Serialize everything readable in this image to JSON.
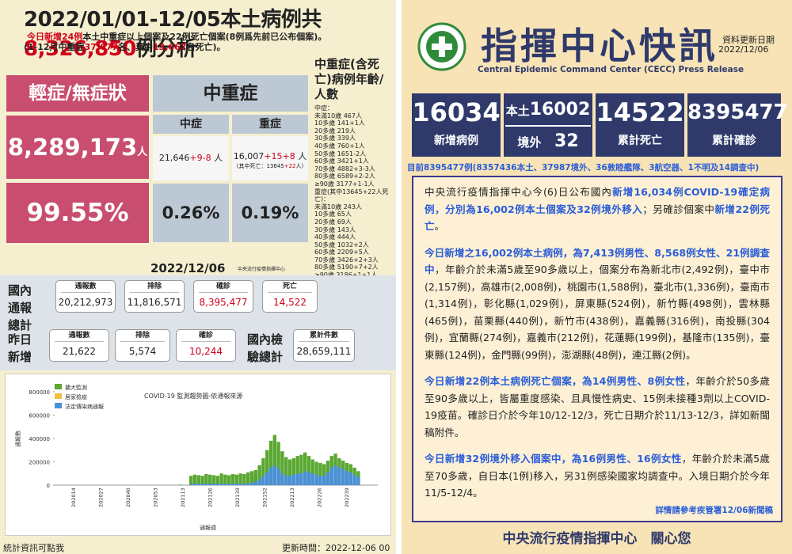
{
  "left": {
    "title_prefix": "2022/01/01-12/05本土病例共",
    "title_number": "8,326,850",
    "title_suffix": "例分析",
    "sub_line1_red": "今日新增24例",
    "sub_line1_rest": "本土中重症以上個案及22例死亡個案(8例爲先前已公布個案)。",
    "sub_line2_a": "(1-12月中重症",
    "sub_line2_b": "37,677",
    "sub_line2_c": "名、其中",
    "sub_line2_d": "13,667",
    "sub_line2_e": "名死亡)。",
    "mild_header": "輕症/無症狀",
    "mild_count": "8,289,173",
    "mild_unit": "人",
    "mild_pct": "99.55%",
    "severe_header": "中重症",
    "moderate_label": "中症",
    "critical_label": "重症",
    "moderate_base": "21,646",
    "moderate_plus": "+9",
    "moderate_minus": "-8",
    "moderate_unit": "人",
    "critical_base": "16,007",
    "critical_plus": "+15",
    "critical_minus": "+8",
    "critical_unit": "人",
    "critical_note_a": "(其中死亡：13645",
    "critical_note_b": "+22",
    "critical_note_c": "人)",
    "moderate_pct": "0.26%",
    "critical_pct": "0.19%",
    "age_header": "中重症(含死亡)病例年齡/人數",
    "age_mod_title": "中症：",
    "age_mod": [
      "未滿10歲 467人",
      "10多歲 141+1人",
      "20多歲 219人",
      "30多歲 339人",
      "40多歲 760+1人",
      "50多歲 1651-2人",
      "60多歲 3421+1人",
      "70多歲 4882+3-3人",
      "80多歲 6589+2-2人",
      "≥90歲 3177+1-1人"
    ],
    "age_sev_title": "重症(其中13645+22人死亡)：",
    "age_sev": [
      "未滿10歲 243人",
      "10多歲 65人",
      "20多歲 69人",
      "30多歲 143人",
      "40多歲 444人",
      "50多歲 1032+2人",
      "60多歲 2209+5人",
      "70多歲 3426+2+3人",
      "80多歲 5190+7+2人",
      "≥90歲 3186+1+1人"
    ],
    "date": "2022/12/06",
    "center_small": "中央流行疫情指揮中心",
    "stats": {
      "dom_total_label": "國內通報總計",
      "report_t": "通報數",
      "report_v": "20,212,973",
      "excl_t": "排除",
      "excl_v": "11,816,571",
      "conf_t": "確診",
      "conf_v": "8,395,477",
      "death_t": "死亡",
      "death_v": "14,522",
      "yest_label": "昨日新增",
      "y_report_t": "通報數",
      "y_report_v": "21,622",
      "y_excl_t": "排除",
      "y_excl_v": "5,574",
      "y_conf_t": "確診",
      "y_conf_v": "10,244",
      "test_label": "國內檢驗總計",
      "test_t": "累計件數",
      "test_v": "28,659,111"
    },
    "footer_left": "統計資訊可點我",
    "footer_right": "更新時間：2022-12-06 00"
  },
  "chart_data": {
    "type": "bar",
    "title": "COVID-19 監測趨勢圖-依通報來源",
    "ylabel": "通報數",
    "xlabel": "通報週",
    "legend": [
      "擴大監測",
      "居家檢疫",
      "法定傳染病通報"
    ],
    "colors": [
      "#5aa832",
      "#f0c040",
      "#4a90d9"
    ],
    "yticks": [
      "800000",
      "600000",
      "400000",
      "200000",
      "0"
    ],
    "xticks": [
      "202014",
      "202027",
      "202040",
      "202053",
      "202113",
      "202126",
      "202139",
      "202152",
      "202213",
      "202226",
      "202239"
    ],
    "ylim": [
      0,
      800000
    ],
    "green": [
      0,
      0,
      0,
      0,
      0,
      0,
      0,
      0,
      0,
      0,
      0,
      0,
      0,
      0,
      0,
      0,
      0,
      0,
      0,
      0,
      0,
      0,
      0,
      0,
      0,
      0,
      0,
      0,
      0,
      0,
      0,
      0,
      0,
      0,
      0,
      0,
      0,
      0,
      0,
      0,
      0,
      0,
      0,
      0,
      0,
      0,
      0,
      0,
      0,
      0,
      0,
      0,
      0,
      0,
      0,
      0,
      0,
      0,
      0,
      0,
      0,
      0,
      0,
      0,
      0,
      0,
      0,
      0,
      0,
      0,
      0,
      0,
      0,
      0,
      0,
      0,
      0,
      0,
      0,
      0,
      0,
      0,
      0,
      0,
      0,
      0,
      0,
      0,
      0,
      0,
      0,
      0,
      0,
      0,
      8000,
      6000,
      4000,
      3000,
      0,
      0,
      0,
      0,
      0,
      0,
      0,
      0,
      0,
      0,
      0,
      0,
      0,
      6000,
      4000,
      0,
      0,
      0,
      0,
      0,
      0,
      0,
      0,
      0,
      0,
      0,
      0,
      0,
      0,
      0,
      0,
      0,
      40000,
      0,
      0,
      0,
      0,
      0,
      0,
      0,
      0,
      0,
      0,
      0,
      0,
      0,
      0,
      0,
      0,
      0,
      0,
      80000,
      0,
      0,
      0,
      0,
      0,
      0,
      0,
      0,
      6000,
      6000,
      0,
      0,
      0,
      0,
      0,
      0,
      0,
      0,
      0,
      0,
      0,
      0,
      0,
      0,
      0,
      0,
      0,
      0,
      0,
      0,
      0,
      0,
      0,
      0,
      0,
      0,
      0,
      0,
      0,
      0,
      0,
      0,
      0,
      0,
      0,
      0,
      0,
      0,
      0,
      0,
      0,
      0,
      0,
      0,
      0,
      0,
      0,
      0,
      0,
      0,
      0,
      0,
      0,
      0,
      0,
      0,
      0,
      0,
      0,
      0,
      0,
      0,
      0,
      0,
      0,
      0,
      0,
      0,
      0,
      0,
      0,
      0,
      0,
      0,
      0,
      0,
      0,
      0,
      0,
      0,
      0,
      0
    ],
    "bars": [
      [
        80000,
        10000
      ],
      [
        90000,
        15000
      ],
      [
        85000,
        10000
      ],
      [
        80000,
        12000
      ],
      [
        95000,
        12000
      ],
      [
        90000,
        10000
      ],
      [
        85000,
        15000
      ],
      [
        80000,
        10000
      ],
      [
        100000,
        12000
      ],
      [
        90000,
        12000
      ],
      [
        85000,
        10000
      ],
      [
        95000,
        12000
      ],
      [
        90000,
        15000
      ],
      [
        100000,
        12000
      ],
      [
        95000,
        12000
      ],
      [
        110000,
        15000
      ],
      [
        120000,
        20000
      ],
      [
        130000,
        30000
      ],
      [
        170000,
        50000
      ],
      [
        230000,
        80000
      ],
      [
        300000,
        110000
      ],
      [
        380000,
        150000
      ],
      [
        430000,
        170000
      ],
      [
        370000,
        140000
      ],
      [
        290000,
        100000
      ],
      [
        240000,
        80000
      ],
      [
        220000,
        80000
      ],
      [
        230000,
        90000
      ],
      [
        250000,
        100000
      ],
      [
        260000,
        100000
      ],
      [
        280000,
        120000
      ],
      [
        250000,
        110000
      ],
      [
        220000,
        100000
      ],
      [
        200000,
        90000
      ],
      [
        190000,
        80000
      ],
      [
        180000,
        80000
      ],
      [
        210000,
        110000
      ],
      [
        250000,
        150000
      ],
      [
        270000,
        170000
      ],
      [
        230000,
        150000
      ],
      [
        210000,
        140000
      ],
      [
        190000,
        120000
      ],
      [
        180000,
        110000
      ],
      [
        150000,
        90000
      ],
      [
        120000,
        70000
      ]
    ]
  },
  "right": {
    "title": "指揮中心快訊",
    "update_label": "資料更新日期",
    "update_date": "2022/12/06",
    "subtitle": "Central Epidemic Command Center (CECC) Press Release",
    "new_cases": "16034",
    "new_cases_label": "新增病例",
    "local_label": "本土",
    "local_value": "16002",
    "import_label": "境外",
    "import_value": "32",
    "deaths": "14522",
    "deaths_label": "累計死亡",
    "total": "8395477",
    "total_label": "累計確診",
    "breakdown": "目前8395477例(8357436本土、37987境外、36敦睦艦隊、3航空器、1不明及14調查中)",
    "p1": [
      "中央流行疫情指揮中心今(6)日公布國內",
      "新增16,034例COVID-19確定病例，分別為16,002例本土個案及32例境外移入",
      "；另確診個案中",
      "新增22例死亡",
      "。"
    ],
    "p2": [
      "今日新增之16,002例本土病例，為7,413例男性、8,568例女性、21例調查中",
      "，年齡介於未滿5歲至90多歲以上，個案分布為新北市(2,492例)，臺中市(2,157例)，高雄市(2,008例)，桃園市(1,588例)，臺北市(1,336例)，臺南市(1,314例)，彰化縣(1,029例)，屏東縣(524例)，新竹縣(498例)，雲林縣(465例)，苗栗縣(440例)，新竹市(438例)，嘉義縣(316例)，南投縣(304例)，宜蘭縣(274例)，嘉義市(212例)，花蓮縣(199例)，基隆市(135例)，臺東縣(124例)，金門縣(99例)，澎湖縣(48例)，連江縣(2例)。"
    ],
    "p3": [
      "今日新增22例本土病例死亡個案，為14例男性、8例女性",
      "，年齡介於50多歲至90多歲以上，皆屬重度感染、且具慢性病史、15例未接種3劑以上COVID-19疫苗。確診日介於今年10/12-12/3，死亡日期介於11/13-12/3，詳如新聞稿附件。"
    ],
    "p4": [
      "今日新增32例境外移入個案中，為16例男性、16例女性",
      "，年齡介於未滿5歲至70多歲，自日本(1例)移入，另31例感染國家均調查中。入境日期介於今年11/5-12/4。"
    ],
    "note": "詳情請參考疾管署12/06新聞稿",
    "footer": "中央流行疫情指揮中心　關心您"
  }
}
